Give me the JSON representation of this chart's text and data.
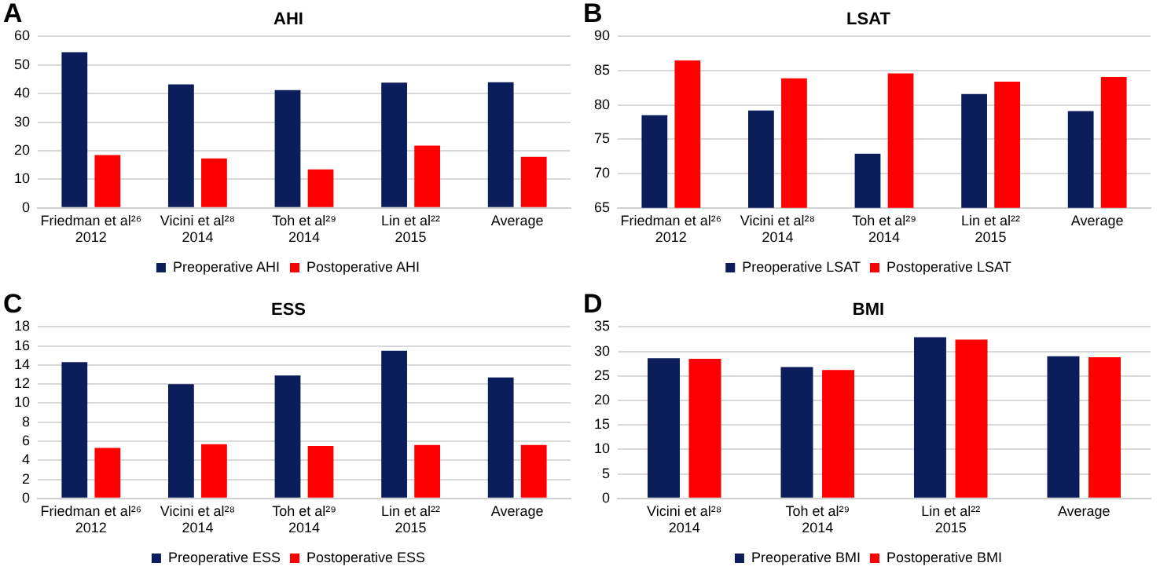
{
  "chart_data": [
    {
      "type": "bar",
      "title": "AHI",
      "annotations": [
        "A"
      ],
      "categories": [
        "Friedman et al²⁶\n2012",
        "Vicini et al²⁸\n2014",
        "Toh et al²⁹\n2014",
        "Lin et al²²\n2015",
        "Average"
      ],
      "series": [
        {
          "name": "Preoperative AHI",
          "color": "#0b1d5a",
          "values": [
            54.5,
            43.2,
            41.2,
            43.8,
            44.0
          ]
        },
        {
          "name": "Postoperative AHI",
          "color": "#ff0000",
          "values": [
            18.5,
            17.3,
            13.5,
            21.8,
            17.9
          ]
        }
      ],
      "ylim": [
        0,
        60
      ],
      "yticks": [
        0,
        10,
        20,
        30,
        40,
        50,
        60
      ],
      "grid": "y",
      "legend": "bottom"
    },
    {
      "type": "bar",
      "title": "LSAT",
      "annotations": [
        "B"
      ],
      "categories": [
        "Friedman et al²⁶\n2012",
        "Vicini et al²⁸\n2014",
        "Toh et al²⁹\n2014",
        "Lin et al²²\n2015",
        "Average"
      ],
      "series": [
        {
          "name": "Preoperative LSAT",
          "color": "#0b1d5a",
          "values": [
            78.5,
            79.2,
            72.9,
            81.6,
            79.1
          ]
        },
        {
          "name": "Postoperative LSAT",
          "color": "#ff0000",
          "values": [
            86.5,
            83.9,
            84.6,
            83.4,
            84.1
          ]
        }
      ],
      "ylim": [
        65,
        90
      ],
      "yticks": [
        65,
        70,
        75,
        80,
        85,
        90
      ],
      "grid": "y",
      "legend": "bottom"
    },
    {
      "type": "bar",
      "title": "ESS",
      "annotations": [
        "C"
      ],
      "categories": [
        "Friedman et al²⁶\n2012",
        "Vicini et al²⁸\n2014",
        "Toh et al²⁹\n2014",
        "Lin et al²²\n2015",
        "Average"
      ],
      "series": [
        {
          "name": "Preoperative ESS",
          "color": "#0b1d5a",
          "values": [
            14.3,
            12.0,
            12.9,
            15.5,
            12.7
          ]
        },
        {
          "name": "Postoperative ESS",
          "color": "#ff0000",
          "values": [
            5.3,
            5.7,
            5.5,
            5.6,
            5.6
          ]
        }
      ],
      "ylim": [
        0,
        18
      ],
      "yticks": [
        0,
        2,
        4,
        6,
        8,
        10,
        12,
        14,
        16,
        18
      ],
      "grid": "y",
      "legend": "bottom"
    },
    {
      "type": "bar",
      "title": "BMI",
      "annotations": [
        "D"
      ],
      "categories": [
        "Vicini et al²⁸\n2014",
        "Toh et al²⁹\n2014",
        "Lin et al²²\n2015",
        "Average"
      ],
      "series": [
        {
          "name": "Preoperative BMI",
          "color": "#0b1d5a",
          "values": [
            28.6,
            26.8,
            32.9,
            29.0
          ]
        },
        {
          "name": "Postoperative BMI",
          "color": "#ff0000",
          "values": [
            28.5,
            26.2,
            32.4,
            28.8
          ]
        }
      ],
      "ylim": [
        0,
        35
      ],
      "yticks": [
        0,
        5,
        10,
        15,
        20,
        25,
        30,
        35
      ],
      "grid": "y",
      "legend": "bottom"
    }
  ]
}
